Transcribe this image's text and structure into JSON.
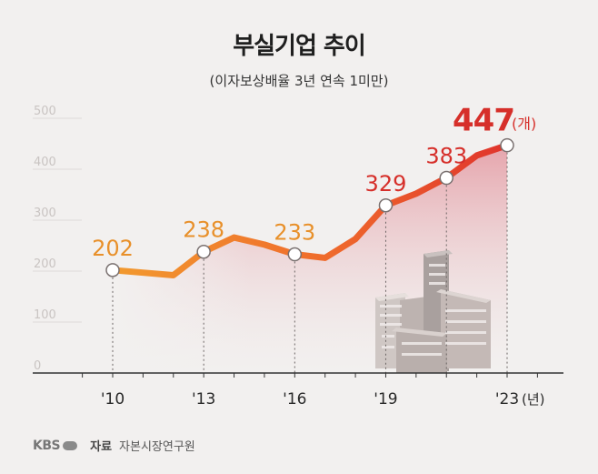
{
  "header": {
    "title": "부실기업 추이",
    "subtitle": "(이자보상배율 3년 연속 1미만)"
  },
  "footer": {
    "logo": "KBS",
    "source_label": "자료",
    "source_value": "자본시장연구원"
  },
  "colors": {
    "line_start": "#f29a2e",
    "line_end": "#e0342c",
    "label_orange": "#e8902a",
    "label_red": "#d62f2a",
    "area_top": "#e5a0a8",
    "axis": "#333333",
    "grid": "#dedad8"
  },
  "chart_data": {
    "type": "line",
    "title": "부실기업 추이",
    "subtitle": "(이자보상배율 3년 연속 1미만)",
    "unit_value": "(개)",
    "unit_year": "(년)",
    "x": [
      2010,
      2011,
      2012,
      2013,
      2014,
      2015,
      2016,
      2017,
      2018,
      2019,
      2020,
      2021,
      2022,
      2023
    ],
    "values": [
      202,
      197,
      192,
      238,
      266,
      252,
      233,
      226,
      263,
      329,
      352,
      383,
      427,
      447
    ],
    "labeled_points": [
      {
        "year": 2010,
        "label": "202"
      },
      {
        "year": 2013,
        "label": "238"
      },
      {
        "year": 2016,
        "label": "233"
      },
      {
        "year": 2019,
        "label": "329"
      },
      {
        "year": 2021,
        "label": "383"
      },
      {
        "year": 2023,
        "label": "447"
      }
    ],
    "x_tick_labels": [
      {
        "year": 2010,
        "label": "'10"
      },
      {
        "year": 2013,
        "label": "'13"
      },
      {
        "year": 2016,
        "label": "'16"
      },
      {
        "year": 2019,
        "label": "'19"
      },
      {
        "year": 2023,
        "label": "'23"
      }
    ],
    "y_ticks": [
      "0",
      "100",
      "200",
      "300",
      "400",
      "500"
    ],
    "ylim": [
      0,
      500
    ],
    "grid": true,
    "legend": "none"
  }
}
